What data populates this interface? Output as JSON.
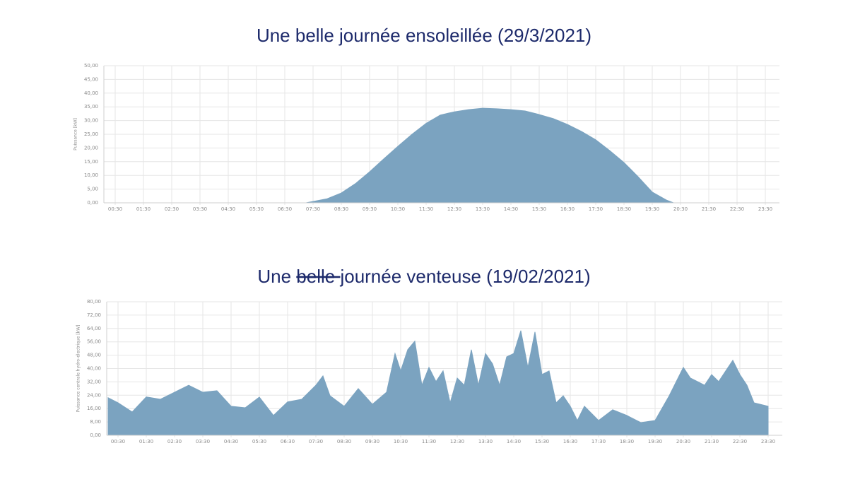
{
  "chart_data": [
    {
      "type": "area",
      "title": [
        "Une belle journée ensoleillée (29/3/2021)"
      ],
      "title_struck": [
        false
      ],
      "ylabel": "Puissance [kW]",
      "color": "#7ba3c0",
      "grid": true,
      "xlim": [
        0,
        24
      ],
      "xticks": [
        {
          "value": 0.5,
          "label": "00:30"
        },
        {
          "value": 1.5,
          "label": "01:30"
        },
        {
          "value": 2.5,
          "label": "02:30"
        },
        {
          "value": 3.5,
          "label": "03:30"
        },
        {
          "value": 4.5,
          "label": "04:30"
        },
        {
          "value": 5.5,
          "label": "05:30"
        },
        {
          "value": 6.5,
          "label": "06:30"
        },
        {
          "value": 7.5,
          "label": "07:30"
        },
        {
          "value": 8.5,
          "label": "08:30"
        },
        {
          "value": 9.5,
          "label": "09:30"
        },
        {
          "value": 10.5,
          "label": "10:30"
        },
        {
          "value": 11.5,
          "label": "11:30"
        },
        {
          "value": 12.5,
          "label": "12:30"
        },
        {
          "value": 13.5,
          "label": "13:30"
        },
        {
          "value": 14.5,
          "label": "14:30"
        },
        {
          "value": 15.5,
          "label": "15:30"
        },
        {
          "value": 16.5,
          "label": "16:30"
        },
        {
          "value": 17.5,
          "label": "17:30"
        },
        {
          "value": 18.5,
          "label": "18:30"
        },
        {
          "value": 19.5,
          "label": "19:30"
        },
        {
          "value": 20.5,
          "label": "20:30"
        },
        {
          "value": 21.5,
          "label": "21:30"
        },
        {
          "value": 22.5,
          "label": "22:30"
        },
        {
          "value": 23.5,
          "label": "23:30"
        }
      ],
      "ylim": [
        0,
        50
      ],
      "yticks": [
        {
          "value": 0,
          "label": "0,00"
        },
        {
          "value": 5,
          "label": "5,00"
        },
        {
          "value": 10,
          "label": "10,00"
        },
        {
          "value": 15,
          "label": "15,00"
        },
        {
          "value": 20,
          "label": "20,00"
        },
        {
          "value": 25,
          "label": "25,00"
        },
        {
          "value": 30,
          "label": "30,00"
        },
        {
          "value": 35,
          "label": "35,00"
        },
        {
          "value": 40,
          "label": "40,00"
        },
        {
          "value": 45,
          "label": "45,00"
        },
        {
          "value": 50,
          "label": "50,00"
        }
      ],
      "x": [
        7.25,
        7.5,
        8,
        8.5,
        9,
        9.5,
        10,
        10.5,
        11,
        11.5,
        12,
        12.5,
        13,
        13.5,
        14,
        14.5,
        15,
        15.5,
        16,
        16.5,
        17,
        17.5,
        18,
        18.5,
        19,
        19.5,
        20,
        20.25
      ],
      "values": [
        0,
        0.5,
        1.5,
        3.6,
        7,
        11.3,
        16,
        20.6,
        25,
        29,
        32,
        33.2,
        34,
        34.5,
        34.3,
        34,
        33.5,
        32.2,
        30.7,
        28.6,
        26,
        23,
        19,
        14.7,
        9.5,
        3.9,
        1,
        0
      ]
    },
    {
      "type": "area",
      "title": [
        "Une ",
        "belle ",
        "journée venteuse (19/02/2021)"
      ],
      "title_struck": [
        false,
        true,
        false
      ],
      "ylabel": "Puissance centrale hydro-électrique [kW]",
      "color": "#7ba3c0",
      "grid": true,
      "xlim": [
        0,
        24
      ],
      "xticks": [
        {
          "value": 0.5,
          "label": "00:30"
        },
        {
          "value": 1.5,
          "label": "01:30"
        },
        {
          "value": 2.5,
          "label": "02:30"
        },
        {
          "value": 3.5,
          "label": "03:30"
        },
        {
          "value": 4.5,
          "label": "04:30"
        },
        {
          "value": 5.5,
          "label": "05:30"
        },
        {
          "value": 6.5,
          "label": "06:30"
        },
        {
          "value": 7.5,
          "label": "07:30"
        },
        {
          "value": 8.5,
          "label": "08:30"
        },
        {
          "value": 9.5,
          "label": "09:30"
        },
        {
          "value": 10.5,
          "label": "10:30"
        },
        {
          "value": 11.5,
          "label": "11:30"
        },
        {
          "value": 12.5,
          "label": "12:30"
        },
        {
          "value": 13.5,
          "label": "13:30"
        },
        {
          "value": 14.5,
          "label": "14:30"
        },
        {
          "value": 15.5,
          "label": "15:30"
        },
        {
          "value": 16.5,
          "label": "16:30"
        },
        {
          "value": 17.5,
          "label": "17:30"
        },
        {
          "value": 18.5,
          "label": "18:30"
        },
        {
          "value": 19.5,
          "label": "19:30"
        },
        {
          "value": 20.5,
          "label": "20:30"
        },
        {
          "value": 21.5,
          "label": "21:30"
        },
        {
          "value": 22.5,
          "label": "22:30"
        },
        {
          "value": 23.5,
          "label": "23:30"
        }
      ],
      "ylim": [
        0,
        80
      ],
      "yticks": [
        {
          "value": 0,
          "label": "0,00"
        },
        {
          "value": 8,
          "label": "8,00"
        },
        {
          "value": 16,
          "label": "16,00"
        },
        {
          "value": 24,
          "label": "24,00"
        },
        {
          "value": 32,
          "label": "32,00"
        },
        {
          "value": 40,
          "label": "40,00"
        },
        {
          "value": 48,
          "label": "48,00"
        },
        {
          "value": 56,
          "label": "56,00"
        },
        {
          "value": 64,
          "label": "64,00"
        },
        {
          "value": 72,
          "label": "72,00"
        },
        {
          "value": 80,
          "label": "80,00"
        }
      ],
      "x": [
        0.15,
        0.5,
        1,
        1.5,
        2,
        2.5,
        3,
        3.5,
        4,
        4.5,
        5,
        5.5,
        6,
        6.5,
        7,
        7.5,
        7.75,
        8,
        8.5,
        9,
        9.5,
        10,
        10.3,
        10.5,
        10.75,
        11,
        11.25,
        11.5,
        11.75,
        12,
        12.25,
        12.5,
        12.75,
        13,
        13.25,
        13.5,
        13.75,
        14,
        14.25,
        14.5,
        14.75,
        15,
        15.25,
        15.5,
        15.75,
        16,
        16.25,
        16.5,
        16.75,
        17,
        17.5,
        18,
        18.5,
        19,
        19.5,
        20,
        20.5,
        20.75,
        21,
        21.25,
        21.5,
        21.75,
        22,
        22.25,
        22.5,
        22.75,
        23,
        23.5
      ],
      "values": [
        22.5,
        19.5,
        14,
        23,
        21.6,
        25.8,
        30,
        25.8,
        26.7,
        17.4,
        16.5,
        22.9,
        11.9,
        20,
        21.6,
        30,
        35.6,
        23.7,
        17.4,
        28,
        18.6,
        25.8,
        49,
        38.6,
        51.3,
        56.4,
        30,
        40.7,
        32.2,
        38.6,
        19.5,
        34.3,
        30,
        51.3,
        30,
        49,
        42.8,
        30,
        47,
        49,
        62.7,
        40.7,
        61.9,
        36.4,
        38.6,
        19.5,
        23.7,
        17.4,
        8.9,
        17.4,
        8.9,
        15.3,
        11.9,
        7.6,
        8.9,
        23.7,
        40.7,
        34.3,
        32.2,
        30,
        36.4,
        32.2,
        38.6,
        44.9,
        36.4,
        30,
        19.5,
        17.4
      ]
    }
  ]
}
